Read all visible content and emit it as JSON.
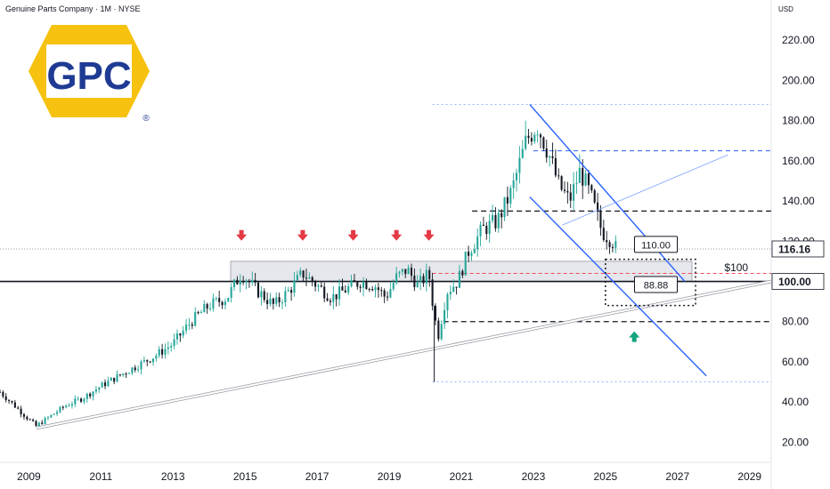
{
  "header": {
    "title": "Genuine Parts Company · 1M · NYSE"
  },
  "logo": {
    "text": "GPC",
    "registered": "®",
    "bg_color": "#f6c20f",
    "fg_color": "#1f3a93"
  },
  "price_axis": {
    "currency": "USD"
  },
  "chart_data": {
    "type": "candlestick",
    "title": "Genuine Parts Company · 1M · NYSE",
    "x_start": 2008.2,
    "x_end": 2029.6,
    "ylim": [
      10,
      240
    ],
    "y_ticks": [
      20,
      40,
      60,
      80,
      100,
      120,
      140,
      160,
      180,
      200,
      220
    ],
    "y_tick_labels": [
      "20.00",
      "40.00",
      "60.00",
      "80.00",
      "100.00",
      "120.00",
      "140.00",
      "160.00",
      "180.00",
      "200.00",
      "220.00"
    ],
    "x_ticks": [
      2009,
      2011,
      2013,
      2015,
      2017,
      2019,
      2021,
      2023,
      2025,
      2027,
      2029
    ],
    "x_tick_labels": [
      "2009",
      "2011",
      "2013",
      "2015",
      "2017",
      "2019",
      "2021",
      "2023",
      "2025",
      "2027",
      "2029"
    ],
    "price_path": [
      [
        2008.2,
        45
      ],
      [
        2008.5,
        40
      ],
      [
        2008.9,
        33
      ],
      [
        2009.2,
        28
      ],
      [
        2009.6,
        33
      ],
      [
        2010.0,
        38
      ],
      [
        2010.5,
        42
      ],
      [
        2011.0,
        48
      ],
      [
        2011.5,
        53
      ],
      [
        2012.0,
        58
      ],
      [
        2012.5,
        63
      ],
      [
        2013.0,
        69
      ],
      [
        2013.5,
        80
      ],
      [
        2014.0,
        88
      ],
      [
        2014.5,
        92
      ],
      [
        2014.9,
        104
      ],
      [
        2015.3,
        96
      ],
      [
        2015.8,
        88
      ],
      [
        2016.2,
        95
      ],
      [
        2016.6,
        104
      ],
      [
        2017.0,
        98
      ],
      [
        2017.4,
        92
      ],
      [
        2017.8,
        96
      ],
      [
        2018.2,
        100
      ],
      [
        2018.6,
        98
      ],
      [
        2018.9,
        92
      ],
      [
        2019.2,
        102
      ],
      [
        2019.5,
        106
      ],
      [
        2019.8,
        98
      ],
      [
        2020.1,
        104
      ],
      [
        2020.2,
        90
      ],
      [
        2020.35,
        72
      ],
      [
        2020.6,
        95
      ],
      [
        2020.9,
        100
      ],
      [
        2021.2,
        115
      ],
      [
        2021.6,
        126
      ],
      [
        2022.0,
        130
      ],
      [
        2022.4,
        145
      ],
      [
        2022.8,
        170
      ],
      [
        2023.1,
        178
      ],
      [
        2023.4,
        165
      ],
      [
        2023.7,
        148
      ],
      [
        2024.0,
        140
      ],
      [
        2024.3,
        155
      ],
      [
        2024.6,
        142
      ],
      [
        2024.9,
        125
      ],
      [
        2025.2,
        120
      ],
      [
        2025.3,
        116
      ]
    ],
    "resistance_zone": {
      "from": 100,
      "to": 110,
      "x_from": 2014.6,
      "x_to": 2027.4
    },
    "levels": [
      {
        "price": 100,
        "label": "100.00",
        "style": "black-solid"
      },
      {
        "price": 135,
        "label": "",
        "style": "black-dashed",
        "x_from": 2021.3
      },
      {
        "price": 80,
        "label": "",
        "style": "black-dashed",
        "x_from": 2020.5
      },
      {
        "price": 165,
        "label": "",
        "style": "blue-dashed",
        "x_from": 2023.0
      },
      {
        "price": 188,
        "label": "",
        "style": "blue-dotted",
        "x_from": 2020.2
      },
      {
        "price": 50,
        "label": "",
        "style": "blue-dotted",
        "x_from": 2020.2
      },
      {
        "price": 104,
        "label": "",
        "style": "red-dashed",
        "x_from": 2020.2
      }
    ],
    "current_price": {
      "value": 116.16,
      "label": "116.16"
    },
    "trendline_support": {
      "from": [
        2009.2,
        27
      ],
      "to": [
        2029.6,
        100
      ]
    },
    "channel_upper": {
      "from": [
        2022.9,
        188
      ],
      "to": [
        2027.2,
        100
      ]
    },
    "channel_lower": {
      "from": [
        2022.9,
        142
      ],
      "to": [
        2027.8,
        53
      ]
    },
    "target_box": {
      "x_from": 2025.0,
      "x_to": 2027.5,
      "y_from": 88,
      "y_to": 111
    },
    "annotations": [
      {
        "text": "110.00",
        "x": 2026.4,
        "y": 118
      },
      {
        "text": "88.88",
        "x": 2026.4,
        "y": 98
      },
      {
        "text": "$100",
        "x": 2028.3,
        "y": 105
      }
    ],
    "red_arrows_years": [
      2014.9,
      2016.6,
      2018.0,
      2019.2,
      2020.1
    ],
    "green_arrow": {
      "x": 2025.8,
      "y": 73
    },
    "arrow_price": 122,
    "colors": {
      "up": "#26a69a",
      "down": "#131722",
      "red_arrow": "#e53945",
      "green_arrow": "#14a37f",
      "channel": "#2962ff"
    }
  }
}
